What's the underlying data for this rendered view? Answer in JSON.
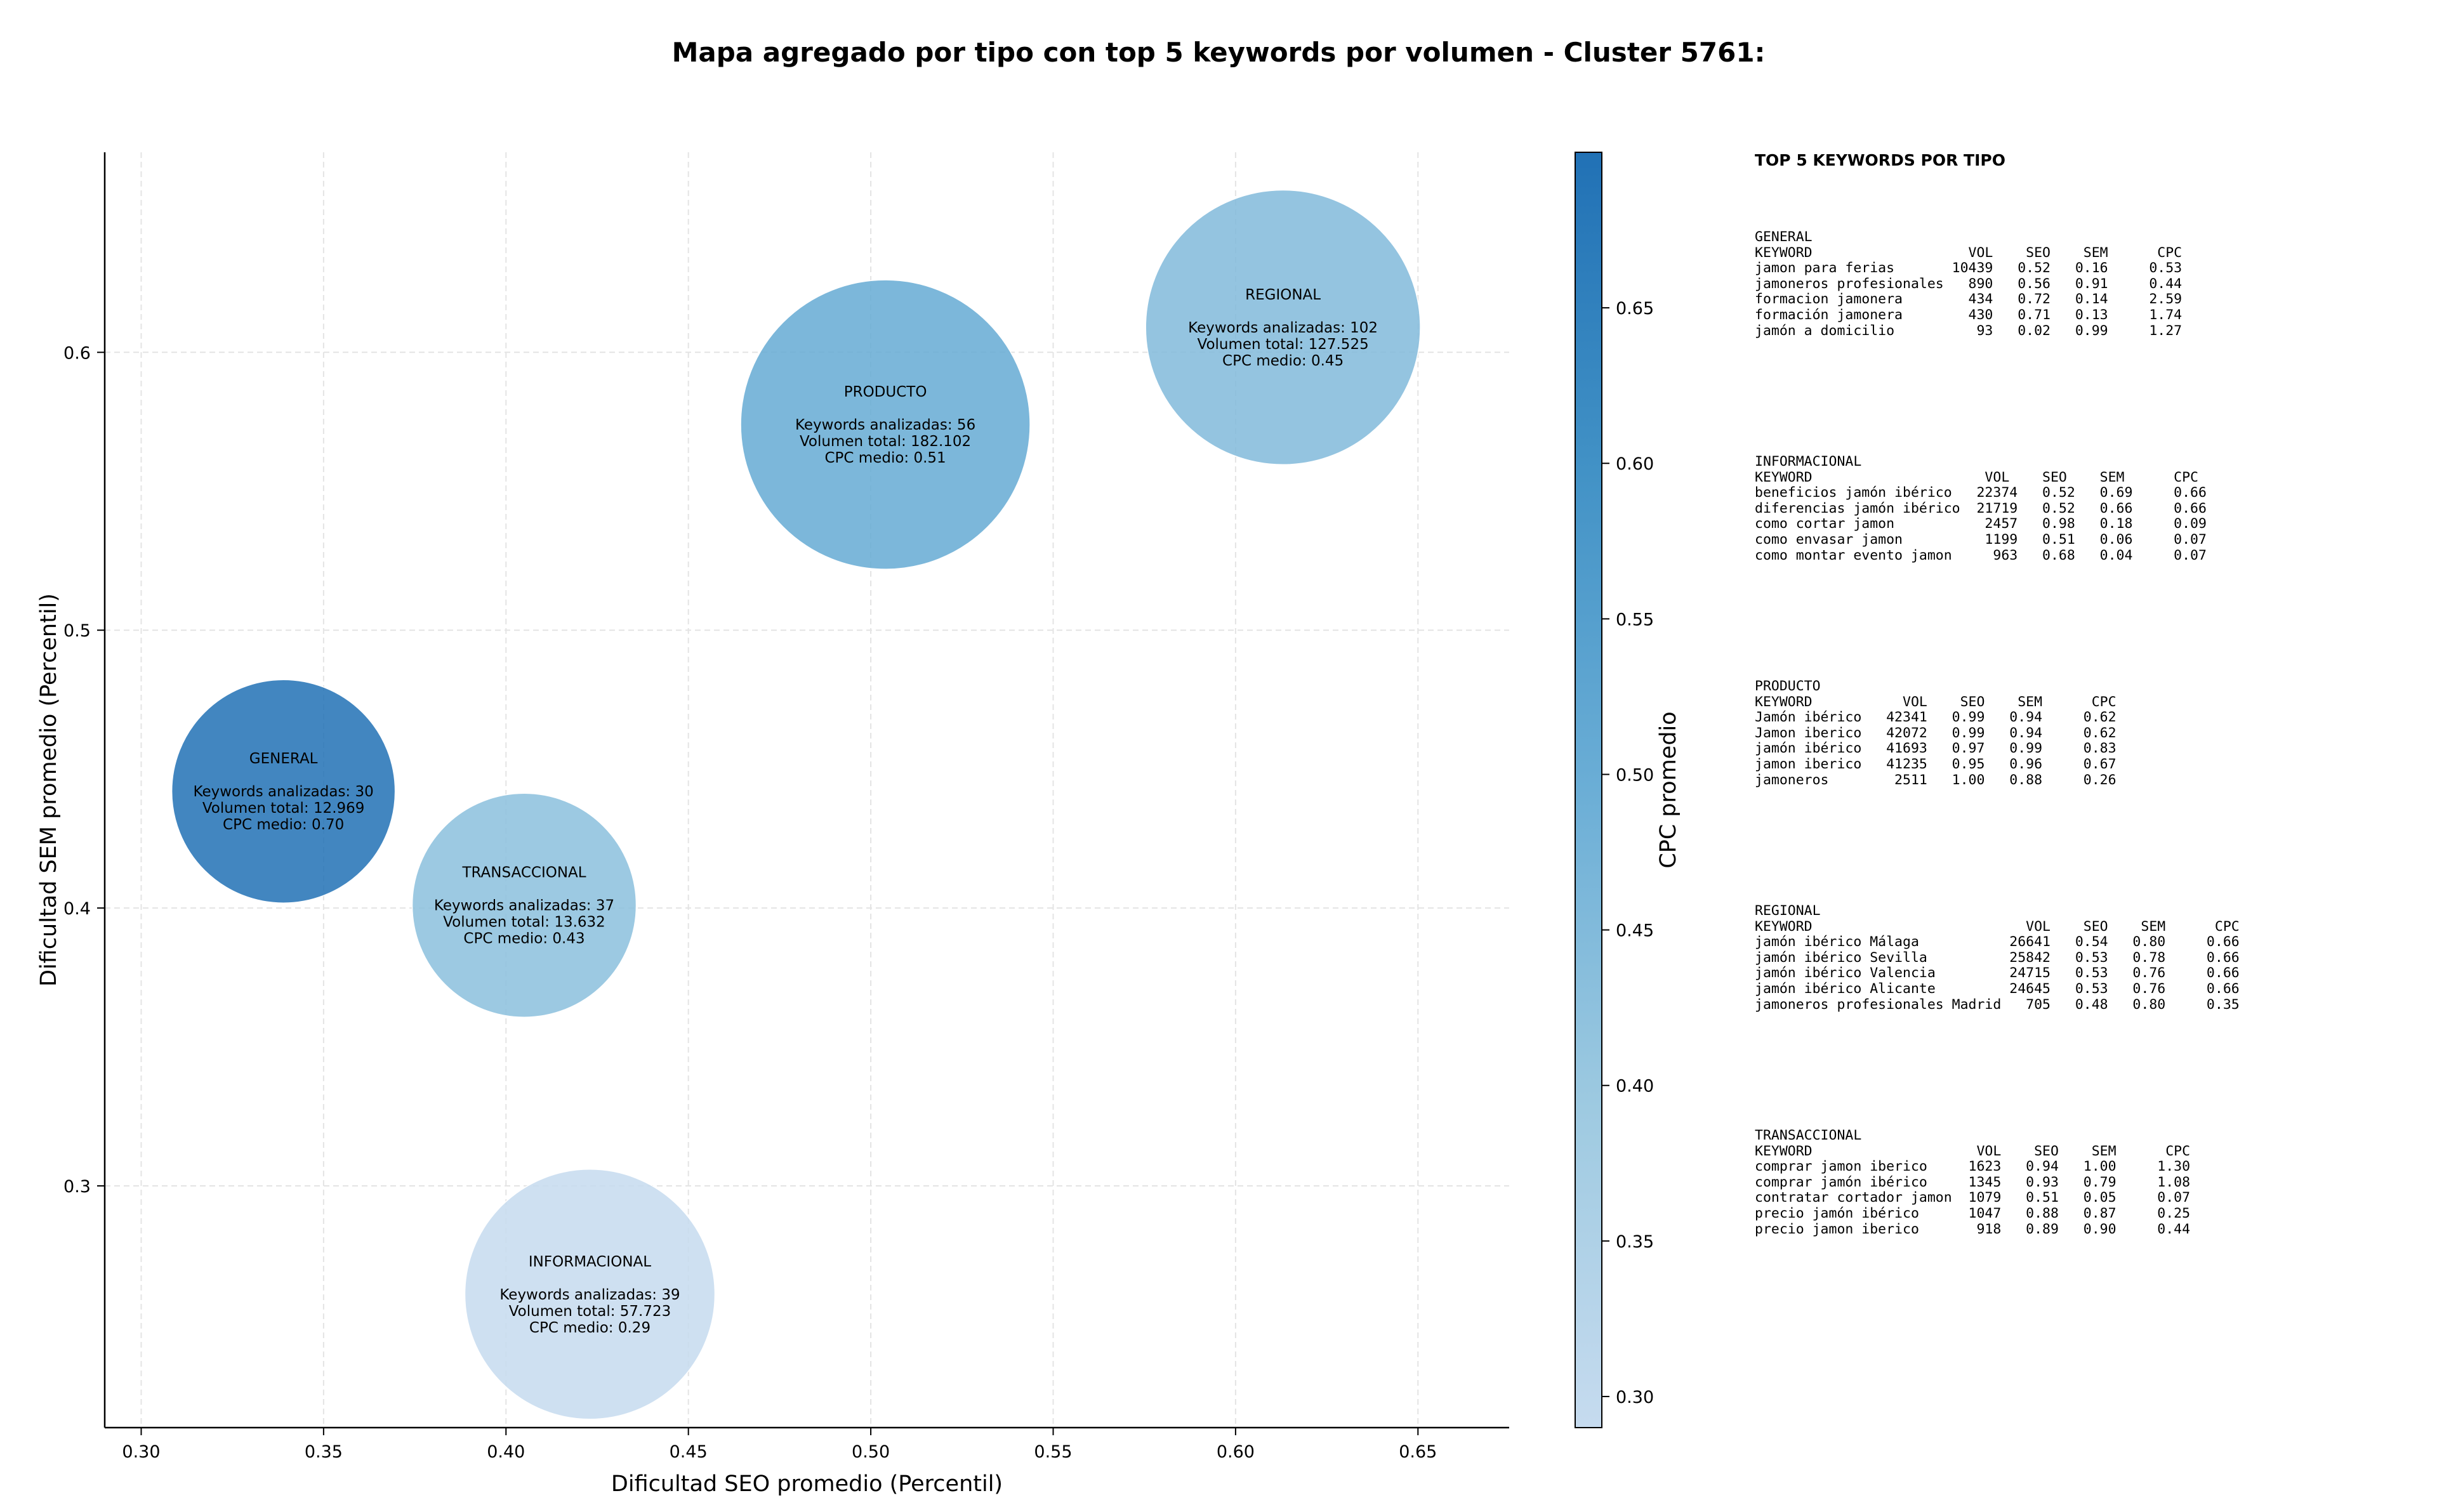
{
  "chart_data": {
    "type": "scatter",
    "variant": "bubble",
    "title": "Mapa agregado por tipo con top 5 keywords por volumen - Cluster 5761:",
    "xlabel": "Dificultad SEO promedio (Percentil)",
    "ylabel": "Dificultad SEM promedio (Percentil)",
    "xlim": [
      0.29,
      0.675
    ],
    "ylim": [
      0.213,
      0.672
    ],
    "xticks": [
      "0.30",
      "0.35",
      "0.40",
      "0.45",
      "0.50",
      "0.55",
      "0.60",
      "0.65"
    ],
    "yticks": [
      "0.3",
      "0.4",
      "0.5",
      "0.6"
    ],
    "grid": true,
    "colorbar": {
      "label": "CPC promedio",
      "min": 0.29,
      "max": 0.7,
      "ticks": [
        "0.30",
        "0.35",
        "0.40",
        "0.45",
        "0.50",
        "0.55",
        "0.60",
        "0.65"
      ],
      "colormap": [
        "#c6dbef",
        "#9ecae1",
        "#6baed6",
        "#4292c6",
        "#2171b5"
      ]
    },
    "points": [
      {
        "name": "GENERAL",
        "x": 0.339,
        "y": 0.442,
        "keywords": 30,
        "volume": 12969,
        "cpc": 0.7,
        "lines": [
          "GENERAL",
          "",
          "Keywords analizadas: 30",
          "Volumen total: 12.969",
          "CPC medio: 0.70"
        ]
      },
      {
        "name": "TRANSACCIONAL",
        "x": 0.405,
        "y": 0.401,
        "keywords": 37,
        "volume": 13632,
        "cpc": 0.43,
        "lines": [
          "TRANSACCIONAL",
          "",
          "Keywords analizadas: 37",
          "Volumen total: 13.632",
          "CPC medio: 0.43"
        ]
      },
      {
        "name": "INFORMACIONAL",
        "x": 0.423,
        "y": 0.261,
        "keywords": 39,
        "volume": 57723,
        "cpc": 0.29,
        "lines": [
          "INFORMACIONAL",
          "",
          "Keywords analizadas: 39",
          "Volumen total: 57.723",
          "CPC medio: 0.29"
        ]
      },
      {
        "name": "PRODUCTO",
        "x": 0.504,
        "y": 0.574,
        "keywords": 56,
        "volume": 182102,
        "cpc": 0.51,
        "lines": [
          "PRODUCTO",
          "",
          "Keywords analizadas: 56",
          "Volumen total: 182.102",
          "CPC medio: 0.51"
        ]
      },
      {
        "name": "REGIONAL",
        "x": 0.613,
        "y": 0.609,
        "keywords": 102,
        "volume": 127525,
        "cpc": 0.45,
        "lines": [
          "REGIONAL",
          "",
          "Keywords analizadas: 102",
          "Volumen total: 127.525",
          "CPC medio: 0.45"
        ]
      }
    ]
  },
  "top5": {
    "title": "TOP 5 KEYWORDS POR TIPO",
    "sections": [
      {
        "type": "GENERAL",
        "lines": [
          "GENERAL",
          "KEYWORD                   VOL    SEO    SEM      CPC",
          "jamon para ferias       10439   0.52   0.16     0.53",
          "jamoneros profesionales   890   0.56   0.91     0.44",
          "formacion jamonera        434   0.72   0.14     2.59",
          "formación jamonera        430   0.71   0.13     1.74",
          "jamón a domicilio          93   0.02   0.99     1.27"
        ]
      },
      {
        "type": "INFORMACIONAL",
        "lines": [
          "INFORMACIONAL",
          "KEYWORD                     VOL    SEO    SEM      CPC",
          "beneficios jamón ibérico   22374   0.52   0.69     0.66",
          "diferencias jamón ibérico  21719   0.52   0.66     0.66",
          "como cortar jamon           2457   0.98   0.18     0.09",
          "como envasar jamon          1199   0.51   0.06     0.07",
          "como montar evento jamon     963   0.68   0.04     0.07"
        ]
      },
      {
        "type": "PRODUCTO",
        "lines": [
          "PRODUCTO",
          "KEYWORD           VOL    SEO    SEM      CPC",
          "Jamón ibérico   42341   0.99   0.94     0.62",
          "Jamon iberico   42072   0.99   0.94     0.62",
          "jamón ibérico   41693   0.97   0.99     0.83",
          "jamon iberico   41235   0.95   0.96     0.67",
          "jamoneros        2511   1.00   0.88     0.26"
        ]
      },
      {
        "type": "REGIONAL",
        "lines": [
          "REGIONAL",
          "KEYWORD                          VOL    SEO    SEM      CPC",
          "jamón ibérico Málaga           26641   0.54   0.80     0.66",
          "jamón ibérico Sevilla          25842   0.53   0.78     0.66",
          "jamón ibérico Valencia         24715   0.53   0.76     0.66",
          "jamón ibérico Alicante         24645   0.53   0.76     0.66",
          "jamoneros profesionales Madrid   705   0.48   0.80     0.35"
        ]
      },
      {
        "type": "TRANSACCIONAL",
        "lines": [
          "TRANSACCIONAL",
          "KEYWORD                    VOL    SEO    SEM      CPC",
          "comprar jamon iberico     1623   0.94   1.00     1.30",
          "comprar jamón ibérico     1345   0.93   0.79     1.08",
          "contratar cortador jamon  1079   0.51   0.05     0.07",
          "precio jamón ibérico      1047   0.88   0.87     0.25",
          "precio jamon iberico       918   0.89   0.90     0.44"
        ]
      }
    ]
  }
}
